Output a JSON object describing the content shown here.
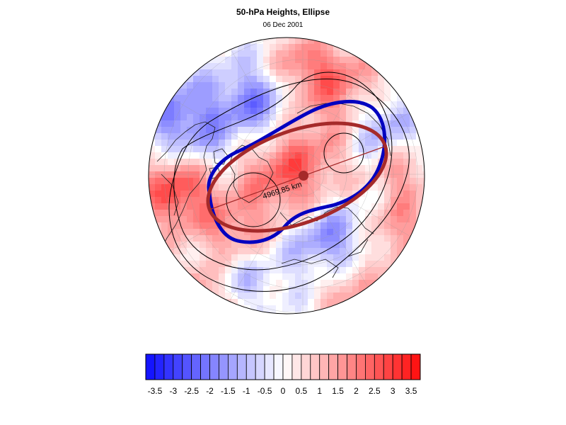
{
  "header": {
    "title": "50-hPa Heights, Ellipse",
    "date": "06 Dec 2001"
  },
  "map": {
    "projection": "north-polar-stereographic",
    "field": "50-hPa height anomaly",
    "distance_label": "4969.85 km",
    "colors": {
      "blue_contour": "#0000c0",
      "ellipse": "#a52a2a",
      "axis_line": "#a52a2a",
      "negative_max": "#1414ff",
      "positive_max": "#ff1414"
    }
  },
  "colorbar": {
    "labels": [
      "-3.5",
      "-3",
      "-2.5",
      "-2",
      "-1.5",
      "-1",
      "-0.5",
      "0",
      "0.5",
      "1",
      "1.5",
      "2",
      "2.5",
      "3",
      "3.5"
    ],
    "min": -3.75,
    "max": 3.75,
    "step": 0.25
  }
}
